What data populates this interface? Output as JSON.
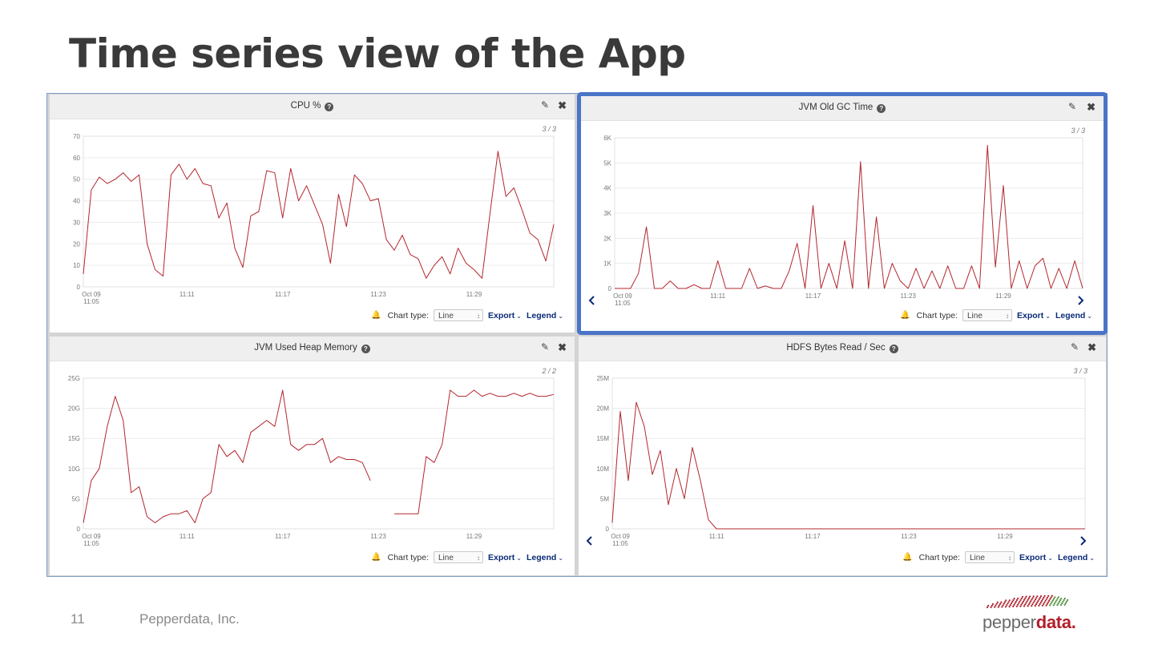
{
  "slide": {
    "title": "Time series view of the App",
    "page_number": "11",
    "company": "Pepperdata, Inc.",
    "logo_light": "pepper",
    "logo_bold": "data",
    "logo_dot": "."
  },
  "controls": {
    "chart_type_label": "Chart type:",
    "chart_type_value": "Line",
    "export_label": "Export",
    "legend_label": "Legend"
  },
  "colors": {
    "series": "#b3262e",
    "selection_border": "#4a74c7",
    "link": "#0a2a78"
  },
  "chart_data": [
    {
      "type": "line",
      "title": "CPU %",
      "page_indicator": "3 / 3",
      "ylim": [
        0,
        70
      ],
      "yticks": [
        0,
        10,
        20,
        30,
        40,
        50,
        60,
        70
      ],
      "ytick_labels": [
        "0",
        "10",
        "20",
        "30",
        "40",
        "50",
        "60",
        "70"
      ],
      "x_range": [
        "11:04:30",
        "11:34:00"
      ],
      "xticks": [
        "11:05",
        "11:11",
        "11:17",
        "11:23",
        "11:29"
      ],
      "xtick_labels": [
        "Oct 09\n11:05",
        "11:11",
        "11:17",
        "11:23",
        "11:29"
      ],
      "grid": true,
      "nav_arrows": false,
      "series": [
        {
          "x": [
            "11:04:30",
            "11:05:00",
            "11:05:30",
            "11:06:00",
            "11:06:30",
            "11:07:00",
            "11:07:30",
            "11:08:00",
            "11:08:30",
            "11:09:00",
            "11:09:30",
            "11:10:00",
            "11:10:30",
            "11:11:00",
            "11:11:30",
            "11:12:00",
            "11:12:30",
            "11:13:00",
            "11:13:30",
            "11:14:00",
            "11:14:30",
            "11:15:00",
            "11:15:30",
            "11:16:00",
            "11:16:30",
            "11:17:00",
            "11:17:30",
            "11:18:00",
            "11:18:30",
            "11:19:00",
            "11:19:30",
            "11:20:00",
            "11:20:30",
            "11:21:00",
            "11:21:30",
            "11:22:00",
            "11:22:30",
            "11:23:00",
            "11:23:30",
            "11:24:00",
            "11:24:30",
            "11:25:00",
            "11:25:30",
            "11:26:00",
            "11:26:30",
            "11:27:00",
            "11:27:30",
            "11:28:00",
            "11:28:30",
            "11:29:00",
            "11:29:30",
            "11:30:00",
            "11:30:30",
            "11:31:00",
            "11:31:30",
            "11:32:00",
            "11:32:30",
            "11:33:00",
            "11:33:30",
            "11:34:00"
          ],
          "values": [
            6,
            45,
            51,
            48,
            50,
            53,
            49,
            52,
            20,
            8,
            5,
            52,
            57,
            50,
            55,
            48,
            47,
            32,
            39,
            18,
            9,
            33,
            35,
            54,
            53,
            32,
            55,
            40,
            47,
            38,
            29,
            11,
            43,
            28,
            52,
            48,
            40,
            41,
            22,
            17,
            24,
            15,
            13,
            4,
            10,
            14,
            6,
            18,
            11,
            8,
            4,
            34,
            63,
            42,
            46,
            36,
            25,
            22,
            12,
            29
          ]
        }
      ]
    },
    {
      "type": "line",
      "title": "JVM Old GC Time",
      "page_indicator": "3 / 3",
      "ylim": [
        0,
        6000
      ],
      "yticks": [
        0,
        1000,
        2000,
        3000,
        4000,
        5000,
        6000
      ],
      "ytick_labels": [
        "0",
        "1K",
        "2K",
        "3K",
        "4K",
        "5K",
        "6K"
      ],
      "x_range": [
        "11:04:30",
        "11:34:00"
      ],
      "xticks": [
        "11:05",
        "11:11",
        "11:17",
        "11:23",
        "11:29"
      ],
      "xtick_labels": [
        "Oct 09\n11:05",
        "11:11",
        "11:17",
        "11:23",
        "11:29"
      ],
      "grid": true,
      "nav_arrows": true,
      "selected": true,
      "series": [
        {
          "x": [
            "11:04:30",
            "11:05:00",
            "11:05:30",
            "11:06:00",
            "11:06:30",
            "11:07:00",
            "11:07:30",
            "11:08:00",
            "11:08:30",
            "11:09:00",
            "11:09:30",
            "11:10:00",
            "11:10:30",
            "11:11:00",
            "11:11:30",
            "11:12:00",
            "11:12:30",
            "11:13:00",
            "11:13:30",
            "11:14:00",
            "11:14:30",
            "11:15:00",
            "11:15:30",
            "11:16:00",
            "11:16:30",
            "11:17:00",
            "11:17:30",
            "11:18:00",
            "11:18:30",
            "11:19:00",
            "11:19:30",
            "11:20:00",
            "11:20:30",
            "11:21:00",
            "11:21:30",
            "11:22:00",
            "11:22:30",
            "11:23:00",
            "11:23:30",
            "11:24:00",
            "11:24:30",
            "11:25:00",
            "11:25:30",
            "11:26:00",
            "11:26:30",
            "11:27:00",
            "11:27:30",
            "11:28:00",
            "11:28:30",
            "11:29:00",
            "11:29:30",
            "11:30:00",
            "11:30:30",
            "11:31:00",
            "11:31:30",
            "11:32:00",
            "11:32:30",
            "11:33:00",
            "11:33:30",
            "11:34:00"
          ],
          "values": [
            0,
            0,
            0,
            600,
            2450,
            0,
            0,
            300,
            0,
            0,
            150,
            0,
            0,
            1100,
            0,
            0,
            0,
            800,
            0,
            100,
            0,
            0,
            700,
            1800,
            0,
            3300,
            0,
            1000,
            0,
            1900,
            0,
            5050,
            0,
            2850,
            0,
            1000,
            300,
            0,
            800,
            0,
            700,
            0,
            900,
            0,
            0,
            900,
            0,
            5700,
            850,
            4100,
            0,
            1100,
            0,
            900,
            1200,
            0,
            800,
            0,
            1100,
            0
          ]
        }
      ]
    },
    {
      "type": "line",
      "title": "JVM Used Heap Memory",
      "page_indicator": "2 / 2",
      "ylim": [
        0,
        25
      ],
      "yticks": [
        0,
        5,
        10,
        15,
        20,
        25
      ],
      "ytick_labels": [
        "0",
        "5G",
        "10G",
        "15G",
        "20G",
        "25G"
      ],
      "x_range": [
        "11:04:30",
        "11:34:00"
      ],
      "xticks": [
        "11:05",
        "11:11",
        "11:17",
        "11:23",
        "11:29"
      ],
      "xtick_labels": [
        "Oct 09\n11:05",
        "11:11",
        "11:17",
        "11:23",
        "11:29"
      ],
      "grid": true,
      "nav_arrows": false,
      "series": [
        {
          "x": [
            "11:04:30",
            "11:05:00",
            "11:05:30",
            "11:06:00",
            "11:06:30",
            "11:07:00",
            "11:07:30",
            "11:08:00",
            "11:08:30",
            "11:09:00",
            "11:09:30",
            "11:10:00",
            "11:10:30",
            "11:11:00",
            "11:11:30",
            "11:12:00",
            "11:12:30",
            "11:13:00",
            "11:13:30",
            "11:14:00",
            "11:14:30",
            "11:15:00",
            "11:15:30",
            "11:16:00",
            "11:16:30",
            "11:17:00",
            "11:17:30",
            "11:18:00",
            "11:18:30",
            "11:19:00",
            "11:19:30",
            "11:20:00",
            "11:20:30",
            "11:21:00",
            "11:21:30",
            "11:22:00",
            "11:22:30",
            "11:23:00",
            "11:23:30",
            "11:24:00",
            "11:24:30",
            "11:25:00",
            "11:25:30",
            "11:26:00",
            "11:26:30",
            "11:27:00",
            "11:27:30",
            "11:28:00",
            "11:28:30",
            "11:29:00",
            "11:29:30",
            "11:30:00",
            "11:30:30",
            "11:31:00",
            "11:31:30",
            "11:32:00",
            "11:32:30",
            "11:33:00",
            "11:33:30",
            "11:34:00"
          ],
          "values": [
            1,
            8,
            10,
            17,
            22,
            18,
            6,
            7,
            2,
            1,
            2,
            2.5,
            2.5,
            3,
            1,
            5,
            6,
            14,
            12,
            13,
            11,
            16,
            17,
            18,
            17,
            23,
            14,
            13,
            14,
            14,
            15,
            11,
            12,
            11.5,
            11.5,
            11,
            8,
            null,
            null,
            2.5,
            2.5,
            2.5,
            2.5,
            12,
            11,
            14,
            23,
            22,
            22,
            23,
            22,
            22.5,
            22,
            22,
            22.5,
            22,
            22.5,
            22,
            22,
            22.3
          ]
        }
      ]
    },
    {
      "type": "line",
      "title": "HDFS Bytes Read / Sec",
      "page_indicator": "3 / 3",
      "ylim": [
        0,
        25
      ],
      "yticks": [
        0,
        5,
        10,
        15,
        20,
        25
      ],
      "ytick_labels": [
        "0",
        "5M",
        "10M",
        "15M",
        "20M",
        "25M"
      ],
      "x_range": [
        "11:04:30",
        "11:34:00"
      ],
      "xticks": [
        "11:05",
        "11:11",
        "11:17",
        "11:23",
        "11:29"
      ],
      "xtick_labels": [
        "Oct 09\n11:05",
        "11:11",
        "11:17",
        "11:23",
        "11:29"
      ],
      "grid": true,
      "nav_arrows": true,
      "series": [
        {
          "x": [
            "11:04:30",
            "11:05:00",
            "11:05:30",
            "11:06:00",
            "11:06:30",
            "11:07:00",
            "11:07:30",
            "11:08:00",
            "11:08:30",
            "11:09:00",
            "11:09:30",
            "11:10:00",
            "11:10:30",
            "11:11:00",
            "11:11:30",
            "11:12:00",
            "11:12:30",
            "11:13:00",
            "11:13:30",
            "11:14:00",
            "11:14:30",
            "11:15:00",
            "11:15:30",
            "11:16:00",
            "11:16:30",
            "11:17:00",
            "11:17:30",
            "11:18:00",
            "11:18:30",
            "11:19:00",
            "11:19:30",
            "11:20:00",
            "11:20:30",
            "11:21:00",
            "11:21:30",
            "11:22:00",
            "11:22:30",
            "11:23:00",
            "11:23:30",
            "11:24:00",
            "11:24:30",
            "11:25:00",
            "11:25:30",
            "11:26:00",
            "11:26:30",
            "11:27:00",
            "11:27:30",
            "11:28:00",
            "11:28:30",
            "11:29:00",
            "11:29:30",
            "11:30:00",
            "11:30:30",
            "11:31:00",
            "11:31:30",
            "11:32:00",
            "11:32:30",
            "11:33:00",
            "11:33:30",
            "11:34:00"
          ],
          "values": [
            1,
            19.5,
            8,
            21,
            17,
            9,
            13,
            4,
            10,
            5,
            13.5,
            8,
            1.5,
            0,
            0,
            0,
            0,
            0,
            0,
            0,
            0,
            0,
            0,
            0,
            0,
            0,
            0,
            0,
            0,
            0,
            0,
            0,
            0,
            0,
            0,
            0,
            0,
            0,
            0,
            0,
            0,
            0,
            0,
            0,
            0,
            0,
            0,
            0,
            0,
            0,
            0,
            0,
            0,
            0,
            0,
            0,
            0,
            0,
            0,
            0
          ]
        }
      ]
    }
  ]
}
